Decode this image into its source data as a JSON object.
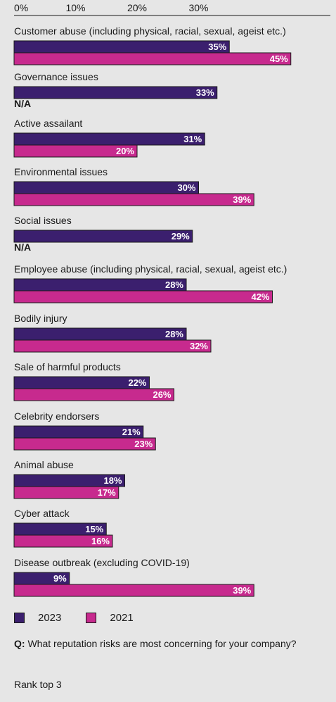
{
  "chart_data": {
    "type": "bar",
    "orientation": "horizontal",
    "x_ticks": [
      "0%",
      "10%",
      "20%",
      "30%"
    ],
    "xlim": [
      0,
      45
    ],
    "categories": [
      "Customer abuse (including physical, racial, sexual, ageist etc.)",
      "Governance issues",
      "Active assailant",
      "Environmental issues",
      "Social issues",
      "Employee abuse (including physical, racial, sexual, ageist etc.)",
      "Bodily injury",
      "Sale of harmful products",
      "Celebrity endorsers",
      "Animal abuse",
      "Cyber attack",
      "Disease outbreak (excluding COVID-19)"
    ],
    "series": [
      {
        "name": "2023",
        "color": "#3b1f6e",
        "values": [
          35,
          33,
          31,
          30,
          29,
          28,
          28,
          22,
          21,
          18,
          15,
          9
        ]
      },
      {
        "name": "2021",
        "color": "#c72a8e",
        "values": [
          45,
          null,
          20,
          39,
          null,
          42,
          32,
          26,
          23,
          17,
          16,
          39
        ]
      }
    ],
    "missing_label": "N/A",
    "legend_position": "bottom-left",
    "grid": false
  },
  "legend": {
    "items": [
      {
        "label": "2023",
        "color": "#3b1f6e"
      },
      {
        "label": "2021",
        "color": "#c72a8e"
      }
    ]
  },
  "footnote": {
    "q_label": "Q:",
    "question": "What reputation risks are most concerning for your company?",
    "rank": "Rank top 3"
  }
}
